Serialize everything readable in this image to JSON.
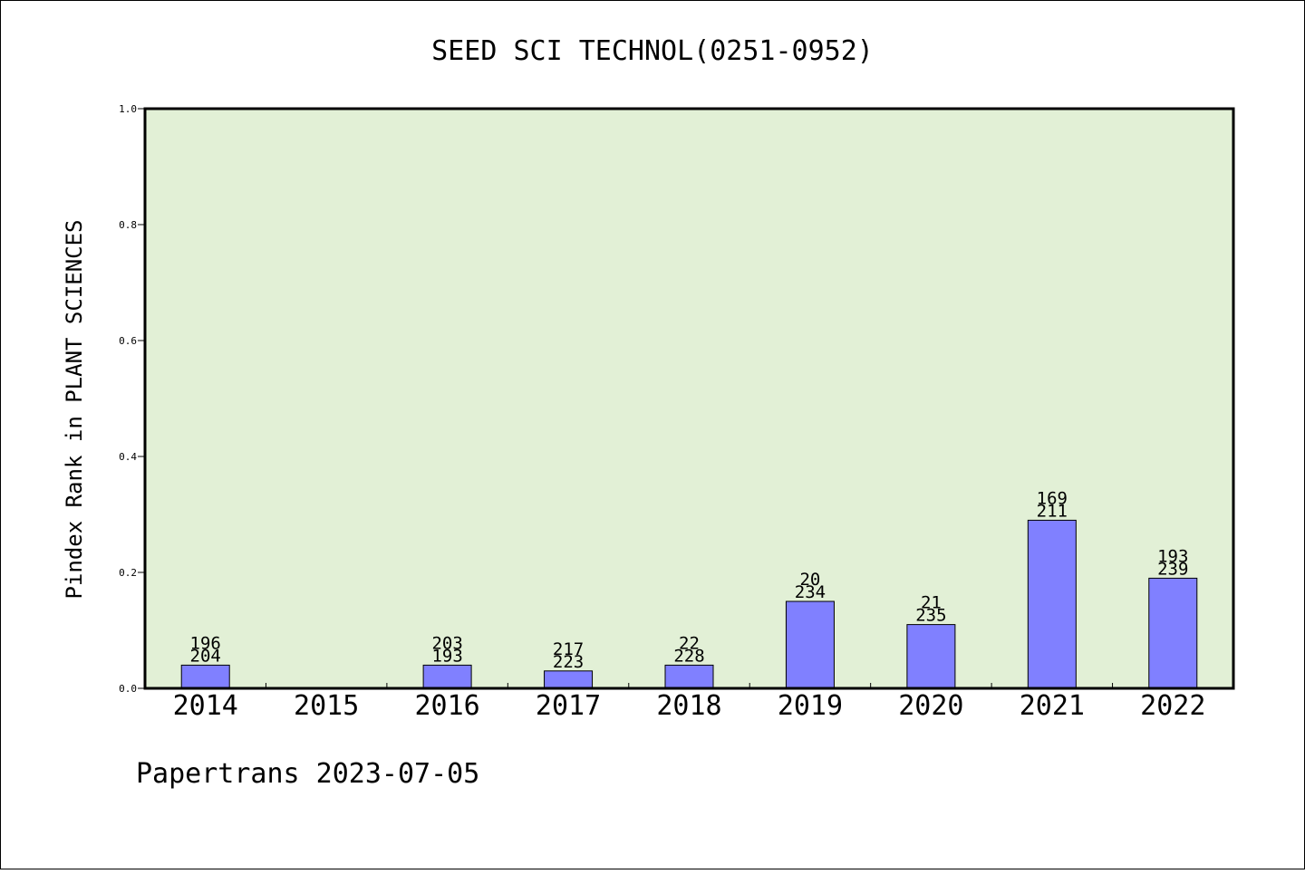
{
  "chart_data": {
    "type": "bar",
    "title": "SEED SCI TECHNOL(0251-0952)",
    "ylabel": "Pindex Rank in PLANT SCIENCES",
    "xlabel": "",
    "ylim": [
      0.0,
      1.0
    ],
    "yticks": [
      "0.0",
      "0.2",
      "0.4",
      "0.6",
      "0.8",
      "1.0"
    ],
    "categories": [
      "2014",
      "2015",
      "2016",
      "2017",
      "2018",
      "2019",
      "2020",
      "2021",
      "2022"
    ],
    "values": [
      0.04,
      null,
      0.04,
      0.03,
      0.04,
      0.15,
      0.11,
      0.29,
      0.19
    ],
    "bar_labels": [
      {
        "top": "196",
        "bottom": "204"
      },
      null,
      {
        "top": "203",
        "bottom": "193"
      },
      {
        "top": "217",
        "bottom": "223"
      },
      {
        "top": "22",
        "bottom": "228"
      },
      {
        "top": "20",
        "bottom": "234"
      },
      {
        "top": "21",
        "bottom": "235"
      },
      {
        "top": "169",
        "bottom": "211"
      },
      {
        "top": "193",
        "bottom": "239"
      }
    ],
    "grid": false,
    "colors": {
      "bar": "#8080ff",
      "plot_background": "#e2f0d6",
      "axis": "#000000"
    }
  },
  "footer": {
    "source": "Papertrans 2023-07-05"
  }
}
